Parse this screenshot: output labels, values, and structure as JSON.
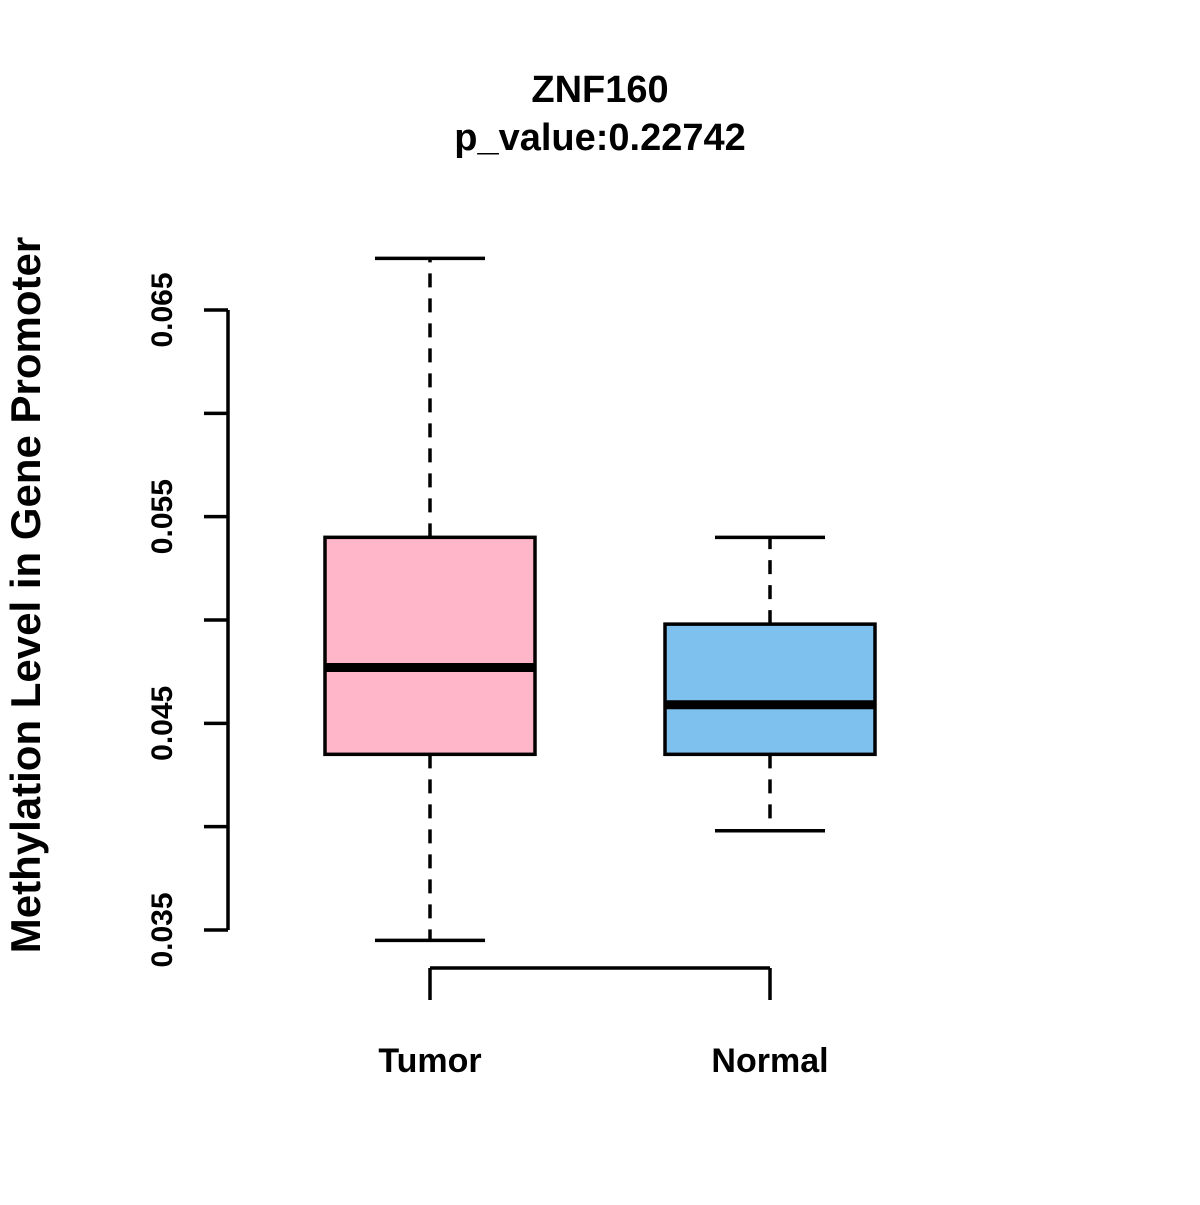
{
  "chart_data": {
    "type": "boxplot",
    "title": "ZNF160",
    "subtitle": "p_value:0.22742",
    "ylabel": "Methylation Level in Gene Promoter",
    "xlabel": "",
    "ylim": [
      0.0345,
      0.0675
    ],
    "y_axis_range_drawn": [
      0.035,
      0.065
    ],
    "grid": "off",
    "yticks": [
      {
        "v": 0.035,
        "label": "0.035"
      },
      {
        "v": 0.04,
        "label": ""
      },
      {
        "v": 0.045,
        "label": "0.045"
      },
      {
        "v": 0.05,
        "label": ""
      },
      {
        "v": 0.055,
        "label": "0.055"
      },
      {
        "v": 0.06,
        "label": ""
      },
      {
        "v": 0.065,
        "label": "0.065"
      }
    ],
    "groups": [
      {
        "label": "Tumor",
        "color": "#FFB6C8",
        "whisker_low": 0.0345,
        "q1": 0.0435,
        "median": 0.0477,
        "q3": 0.054,
        "whisker_high": 0.0675
      },
      {
        "label": "Normal",
        "color": "#7EC0EE",
        "whisker_low": 0.0398,
        "q1": 0.0435,
        "median": 0.0459,
        "q3": 0.0498,
        "whisker_high": 0.054
      }
    ],
    "colors": {
      "box_stroke": "#000000",
      "median": "#000000",
      "axis": "#000000",
      "background": "#ffffff"
    }
  }
}
